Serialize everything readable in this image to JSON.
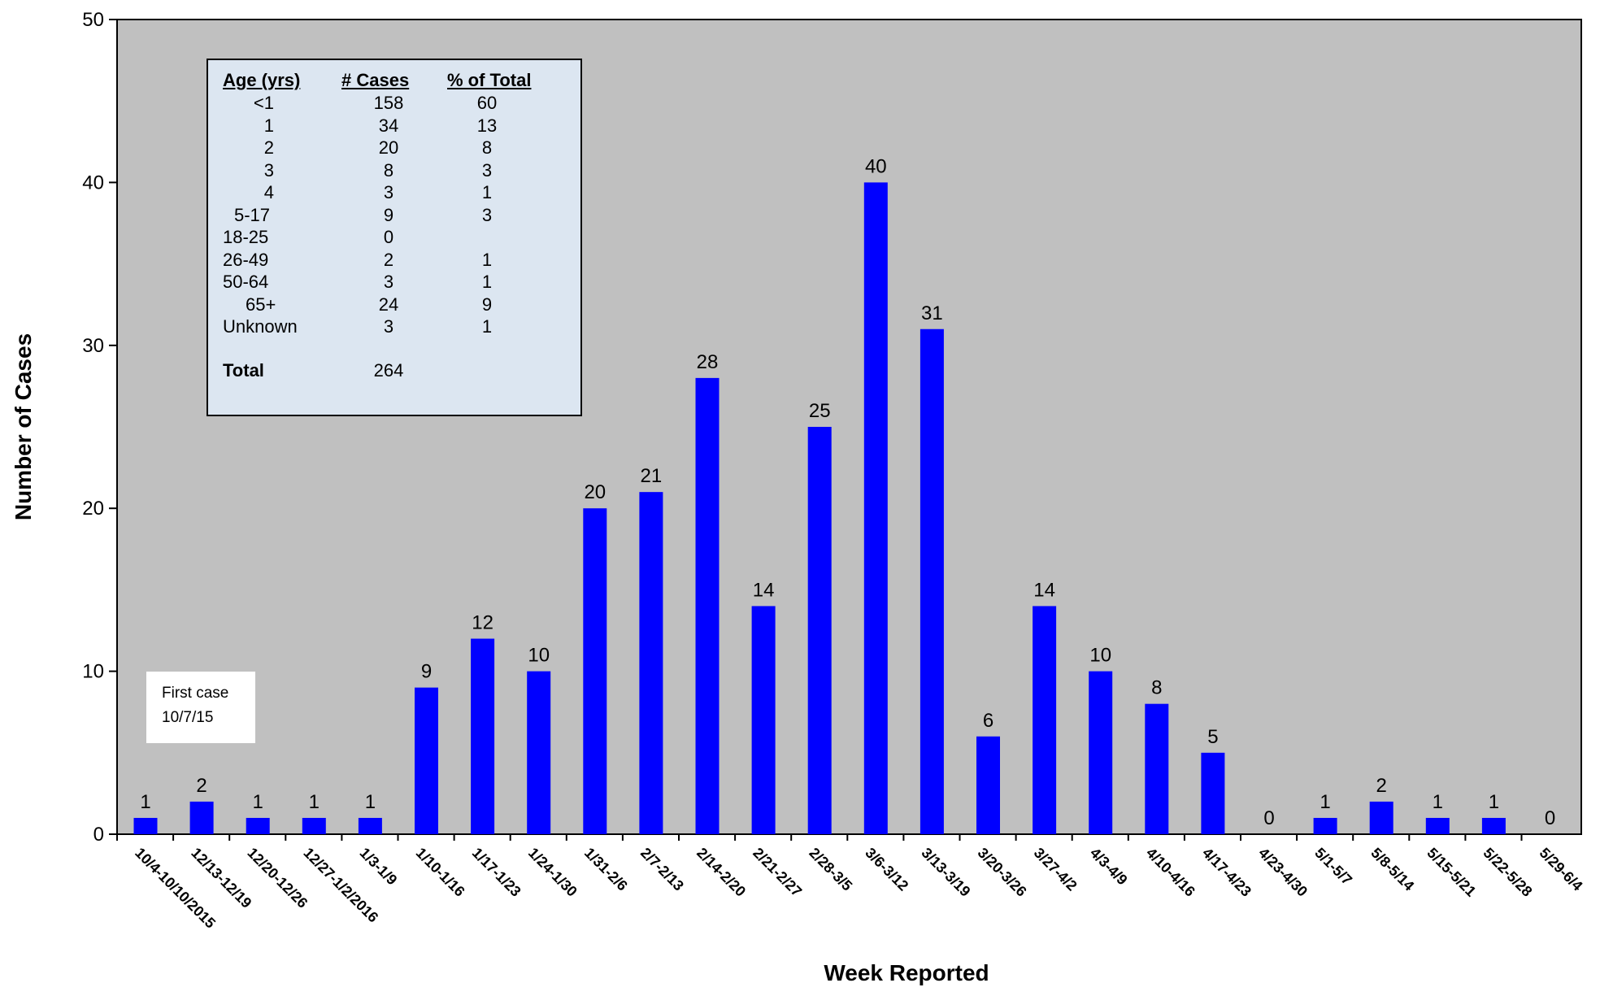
{
  "chart_data": {
    "type": "bar",
    "xlabel": "Week Reported",
    "ylabel": "Number of Cases",
    "ylim": [
      0,
      50
    ],
    "yticks": [
      0,
      10,
      20,
      30,
      40,
      50
    ],
    "grid": false,
    "legend": "none",
    "categories": [
      "10/4-10/10/2015",
      "12/13-12/19",
      "12/20-12/26",
      "12/27-1/2/2016",
      "1/3-1/9",
      "1/10-1/16",
      "1/17-1/23",
      "1/24-1/30",
      "1/31-2/6",
      "2/7-2/13",
      "2/14-2/20",
      "2/21-2/27",
      "2/28-3/5",
      "3/6-3/12",
      "3/13-3/19",
      "3/20-3/26",
      "3/27-4/2",
      "4/3-4/9",
      "4/10-4/16",
      "4/17-4/23",
      "4/23-4/30",
      "5/1-5/7",
      "5/8-5/14",
      "5/15-5/21",
      "5/22-5/28",
      "5/29-6/4"
    ],
    "values": [
      1,
      2,
      1,
      1,
      1,
      9,
      12,
      10,
      20,
      21,
      28,
      14,
      25,
      40,
      31,
      6,
      14,
      10,
      8,
      5,
      0,
      1,
      2,
      1,
      1,
      0
    ],
    "colors": {
      "bar": "#0000ff",
      "plot_bg": "#c0c0c0",
      "table_bg": "#dce6f1"
    }
  },
  "age_table": {
    "headers": [
      "Age (yrs)",
      "# Cases",
      "% of Total"
    ],
    "rows": [
      [
        "<1",
        "158",
        "60"
      ],
      [
        "1",
        "34",
        "13"
      ],
      [
        "2",
        "20",
        "8"
      ],
      [
        "3",
        "8",
        "3"
      ],
      [
        "4",
        "3",
        "1"
      ],
      [
        "5-17",
        "9",
        "3"
      ],
      [
        "18-25",
        "0",
        ""
      ],
      [
        "26-49",
        "2",
        "1"
      ],
      [
        "50-64",
        "3",
        "1"
      ],
      [
        "65+",
        "24",
        "9"
      ],
      [
        "Unknown",
        "3",
        "1"
      ]
    ],
    "total_label": "Total",
    "total_value": "264"
  },
  "note": {
    "line1": "First case",
    "line2": "10/7/15"
  }
}
